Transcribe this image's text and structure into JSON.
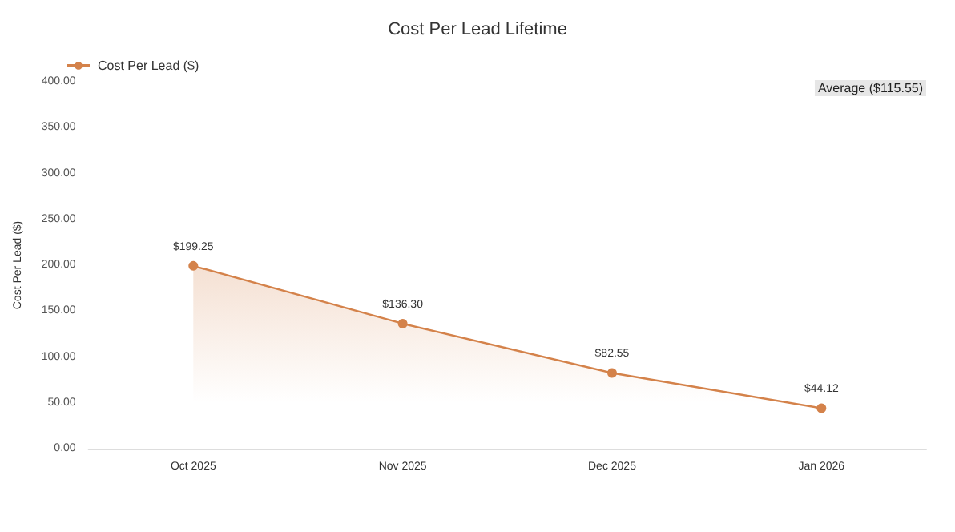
{
  "chart_data": {
    "type": "area",
    "title": "Cost Per Lead Lifetime",
    "ylabel": "Cost Per Lead ($)",
    "categories": [
      "Oct 2025",
      "Nov 2025",
      "Dec 2025",
      "Jan 2026"
    ],
    "series": [
      {
        "name": "Cost Per Lead ($)",
        "color": "#d4824a",
        "values": [
          199.25,
          136.3,
          82.55,
          44.12
        ],
        "value_labels": [
          "$199.25",
          "$136.30",
          "$82.55",
          "$44.12"
        ]
      }
    ],
    "ylim": [
      0,
      400
    ],
    "yticks": [
      {
        "value": 0,
        "label": "0.00"
      },
      {
        "value": 50,
        "label": "50.00"
      },
      {
        "value": 100,
        "label": "100.00"
      },
      {
        "value": 150,
        "label": "150.00"
      },
      {
        "value": 200,
        "label": "200.00"
      },
      {
        "value": 250,
        "label": "250.00"
      },
      {
        "value": 300,
        "label": "300.00"
      },
      {
        "value": 350,
        "label": "350.00"
      },
      {
        "value": 400,
        "label": "400.00"
      }
    ],
    "annotations": [
      "Average ($115.55)"
    ],
    "grid": false,
    "legend": "top left",
    "marker": "circle"
  }
}
